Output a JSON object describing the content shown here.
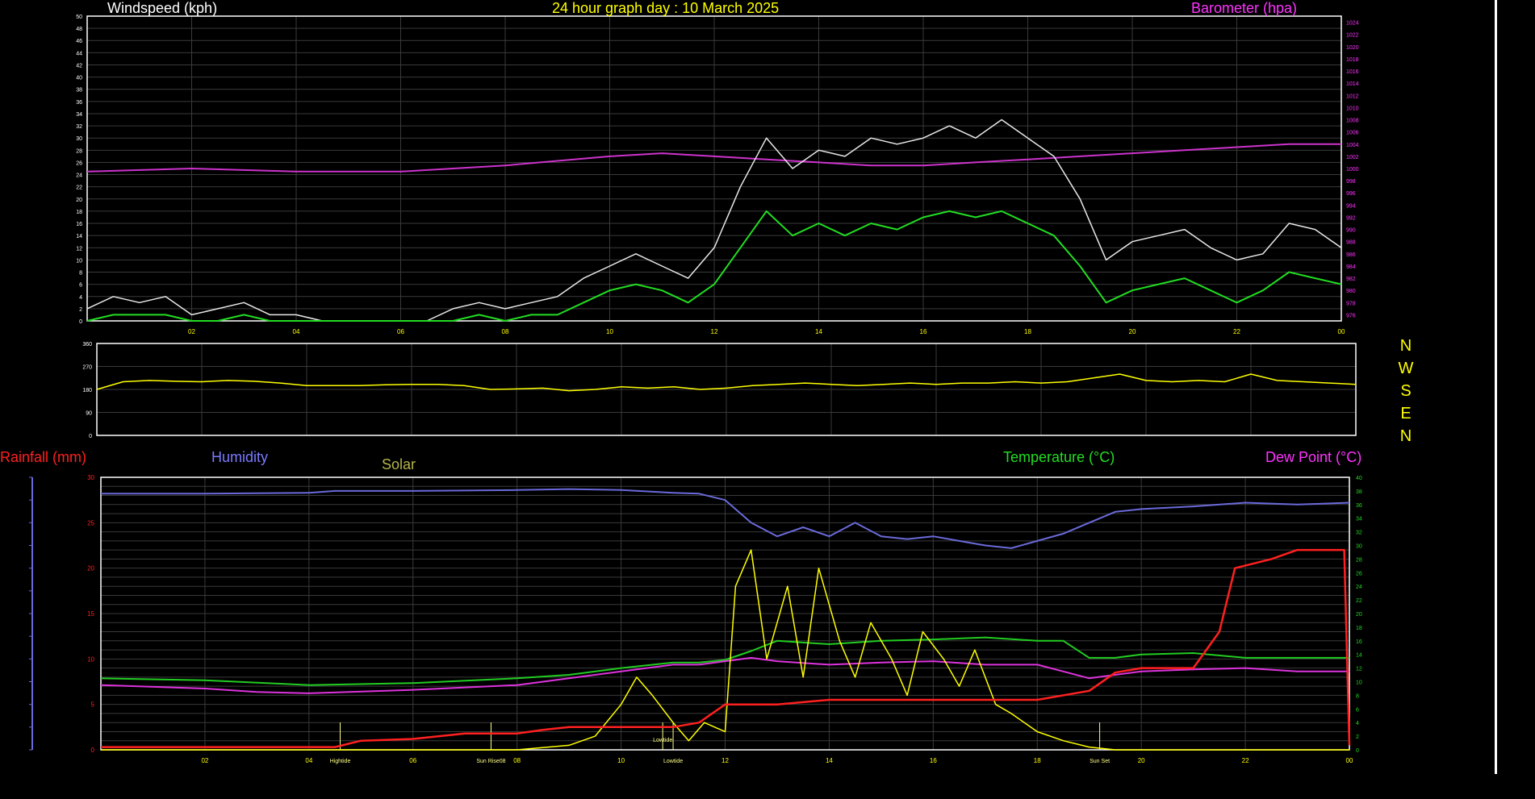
{
  "colors": {
    "background": "#000000",
    "grid": "#3a3a3a",
    "axis": "#ffffff",
    "windspeed": "#e8e8e8",
    "wind_avg": "#22dd22",
    "barometer": "#cc33cc",
    "direction": "#ffff00",
    "rainfall": "#ff2020",
    "humidity": "#6a6adb",
    "solar": "#ffff00",
    "temperature": "#22cc22",
    "dewpoint": "#dd33dd"
  },
  "header": {
    "windspeed_title": "Windspeed (kph)",
    "graph_title": "24 hour graph day : 10 March 2025",
    "barometer_title": "Barometer (hpa)"
  },
  "lower_header": {
    "rainfall": "Rainfall (mm)",
    "humidity": "Humidity",
    "solar": "Solar",
    "temperature": "Temperature (°C)",
    "dewpoint": "Dew Point (°C)"
  },
  "compass": [
    "N",
    "W",
    "S",
    "E",
    "N"
  ],
  "chart_data": [
    {
      "type": "line",
      "title": "24 hour graph day : 10 March 2025",
      "xlabel": "",
      "x_ticks": [
        "02",
        "04",
        "06",
        "08",
        "10",
        "12",
        "14",
        "16",
        "18",
        "20",
        "22",
        "00"
      ],
      "xlim": [
        0,
        24
      ],
      "ylabel": "Windspeed (kph)",
      "ylim": [
        0,
        50
      ],
      "y_ticks": [
        0,
        2,
        4,
        6,
        8,
        10,
        12,
        14,
        16,
        18,
        20,
        22,
        24,
        26,
        28,
        30,
        32,
        34,
        36,
        38,
        40,
        42,
        44,
        46,
        48,
        50
      ],
      "y2label": "Barometer (hpa)",
      "y2lim": [
        975,
        1025
      ],
      "y2_ticks": [
        976,
        978,
        980,
        982,
        984,
        986,
        988,
        990,
        992,
        994,
        996,
        998,
        1000,
        1002,
        1004,
        1006,
        1008,
        1010,
        1012,
        1014,
        1016,
        1018,
        1020,
        1022,
        1024
      ],
      "grid": true,
      "series": [
        {
          "name": "Windspeed (kph)",
          "axis": "y",
          "x": [
            0.0,
            0.5,
            1.0,
            1.5,
            2.0,
            2.5,
            3.0,
            3.5,
            4.0,
            4.5,
            5.0,
            5.5,
            6.0,
            6.5,
            7.0,
            7.5,
            8.0,
            8.5,
            9.0,
            9.5,
            10.0,
            10.5,
            11.0,
            11.5,
            12.0,
            12.5,
            13.0,
            13.5,
            14.0,
            14.5,
            15.0,
            15.5,
            16.0,
            16.5,
            17.0,
            17.5,
            18.0,
            18.5,
            19.0,
            19.5,
            20.0,
            20.5,
            21.0,
            21.5,
            22.0,
            22.5,
            23.0,
            23.5,
            24.0
          ],
          "values": [
            2,
            4,
            3,
            4,
            1,
            2,
            3,
            1,
            1,
            0,
            0,
            0,
            0,
            0,
            2,
            3,
            2,
            3,
            4,
            7,
            9,
            11,
            9,
            7,
            12,
            22,
            30,
            25,
            28,
            27,
            30,
            29,
            30,
            32,
            30,
            33,
            30,
            27,
            20,
            10,
            13,
            14,
            15,
            12,
            10,
            11,
            16,
            15,
            12
          ]
        },
        {
          "name": "Wind average (kph)",
          "axis": "y",
          "x": [
            0.0,
            0.5,
            1.0,
            1.5,
            2.0,
            2.5,
            3.0,
            3.5,
            4.0,
            4.5,
            5.0,
            5.5,
            6.0,
            6.5,
            7.0,
            7.5,
            8.0,
            8.5,
            9.0,
            9.5,
            10.0,
            10.5,
            11.0,
            11.5,
            12.0,
            12.5,
            13.0,
            13.5,
            14.0,
            14.5,
            15.0,
            15.5,
            16.0,
            16.5,
            17.0,
            17.5,
            18.0,
            18.5,
            19.0,
            19.5,
            20.0,
            20.5,
            21.0,
            21.5,
            22.0,
            22.5,
            23.0,
            23.5,
            24.0
          ],
          "values": [
            0,
            1,
            1,
            1,
            0,
            0,
            1,
            0,
            0,
            0,
            0,
            0,
            0,
            0,
            0,
            1,
            0,
            1,
            1,
            3,
            5,
            6,
            5,
            3,
            6,
            12,
            18,
            14,
            16,
            14,
            16,
            15,
            17,
            18,
            17,
            18,
            16,
            14,
            9,
            3,
            5,
            6,
            7,
            5,
            3,
            5,
            8,
            7,
            6
          ]
        },
        {
          "name": "Barometer (hpa)",
          "axis": "y2",
          "x": [
            0,
            2,
            4,
            6,
            8,
            10,
            11,
            12,
            13,
            14,
            15,
            16,
            17,
            18,
            19,
            20,
            21,
            22,
            23,
            24
          ],
          "values": [
            999.5,
            1000.0,
            999.5,
            999.5,
            1000.5,
            1002.0,
            1002.5,
            1002.0,
            1001.5,
            1001.0,
            1000.5,
            1000.5,
            1001.0,
            1001.5,
            1002.0,
            1002.5,
            1003.0,
            1003.5,
            1004.0,
            1004.0
          ]
        }
      ]
    },
    {
      "type": "line",
      "xlabel": "",
      "xlim": [
        0,
        24
      ],
      "ylabel": "",
      "ylim": [
        0,
        360
      ],
      "y_ticks": [
        0,
        90,
        180,
        270,
        360
      ],
      "grid": true,
      "series": [
        {
          "name": "Wind direction",
          "x": [
            0.0,
            0.5,
            1.0,
            1.5,
            2.0,
            2.5,
            3.0,
            3.5,
            4.0,
            4.5,
            5.0,
            5.5,
            6.0,
            6.5,
            7.0,
            7.5,
            8.0,
            8.5,
            9.0,
            9.5,
            10.0,
            10.5,
            11.0,
            11.5,
            12.0,
            12.5,
            13.0,
            13.5,
            14.0,
            14.5,
            15.0,
            15.5,
            16.0,
            16.5,
            17.0,
            17.5,
            18.0,
            18.5,
            19.0,
            19.5,
            20.0,
            20.5,
            21.0,
            21.5,
            22.0,
            22.5,
            23.0,
            23.5,
            24.0
          ],
          "values": [
            180,
            210,
            215,
            212,
            210,
            215,
            212,
            205,
            195,
            195,
            195,
            198,
            200,
            200,
            195,
            180,
            182,
            185,
            175,
            180,
            190,
            185,
            190,
            180,
            185,
            195,
            200,
            205,
            200,
            195,
            200,
            205,
            200,
            205,
            205,
            210,
            205,
            210,
            225,
            240,
            215,
            210,
            215,
            210,
            240,
            215,
            210,
            205,
            200
          ]
        }
      ]
    },
    {
      "type": "line",
      "xlabel": "",
      "x_ticks": [
        "02",
        "04",
        "06",
        "08",
        "10",
        "12",
        "14",
        "16",
        "18",
        "20",
        "22",
        "00"
      ],
      "xlim": [
        0,
        24
      ],
      "ylabel": "Rainfall (mm)",
      "ylim": [
        0,
        30
      ],
      "y_ticks": [
        0,
        5,
        10,
        15,
        20,
        25,
        30
      ],
      "y2label": "Temperature (°C)",
      "y2lim": [
        0,
        40
      ],
      "y2_ticks": [
        0,
        2,
        4,
        6,
        8,
        10,
        12,
        14,
        16,
        18,
        20,
        22,
        24,
        26,
        28,
        30,
        32,
        34,
        36,
        38,
        40
      ],
      "grid": true,
      "annotations": [
        "Hightide",
        "Sun Rise08",
        "Lowtide",
        "Lowtide",
        "Sun Set"
      ],
      "series": [
        {
          "name": "Rainfall (mm)",
          "axis": "y",
          "x": [
            0,
            4.5,
            5.0,
            6.0,
            7.0,
            8.0,
            8.5,
            9.0,
            10.0,
            11.0,
            11.5,
            12.0,
            13.0,
            14.0,
            16.0,
            18.0,
            19.0,
            19.5,
            20.0,
            21.0,
            21.5,
            21.8,
            22.5,
            23.0,
            23.9,
            24.0
          ],
          "values": [
            0.3,
            0.3,
            1.0,
            1.2,
            1.8,
            1.8,
            2.2,
            2.5,
            2.5,
            2.5,
            3.0,
            5.0,
            5.0,
            5.5,
            5.5,
            5.5,
            6.5,
            8.5,
            9.0,
            9.0,
            13.0,
            20.0,
            21.0,
            22.0,
            22.0,
            0.5
          ]
        },
        {
          "name": "Humidity",
          "axis": "y",
          "x": [
            0,
            2,
            4,
            4.5,
            6,
            8,
            9,
            10,
            11,
            11.5,
            12,
            12.5,
            13,
            13.5,
            14,
            14.5,
            15,
            15.5,
            16,
            16.5,
            17,
            17.5,
            18,
            18.5,
            19,
            19.5,
            20,
            21,
            22,
            23,
            24
          ],
          "values": [
            28.2,
            28.2,
            28.3,
            28.5,
            28.5,
            28.6,
            28.7,
            28.6,
            28.3,
            28.2,
            27.5,
            25.0,
            23.5,
            24.5,
            23.5,
            25.0,
            23.5,
            23.2,
            23.5,
            23.0,
            22.5,
            22.2,
            23.0,
            23.8,
            25.0,
            26.2,
            26.5,
            26.8,
            27.2,
            27.0,
            27.2
          ]
        },
        {
          "name": "Solar",
          "axis": "y",
          "x": [
            0,
            8.0,
            9.0,
            9.5,
            10.0,
            10.3,
            10.6,
            11.0,
            11.3,
            11.6,
            12.0,
            12.2,
            12.5,
            12.8,
            13.2,
            13.5,
            13.8,
            14.2,
            14.5,
            14.8,
            15.2,
            15.5,
            15.8,
            16.2,
            16.5,
            16.8,
            17.2,
            17.5,
            18.0,
            18.5,
            19.0,
            19.5,
            24.0
          ],
          "values": [
            0,
            0,
            0.5,
            1.5,
            5,
            8,
            6,
            3,
            1,
            3,
            2,
            18,
            22,
            10,
            18,
            8,
            20,
            12,
            8,
            14,
            10,
            6,
            13,
            10,
            7,
            11,
            5,
            4,
            2,
            1,
            0.3,
            0,
            0
          ]
        },
        {
          "name": "Temperature (°C)",
          "axis": "y2",
          "x": [
            0,
            2,
            4,
            6,
            8,
            9,
            10,
            11,
            11.5,
            12,
            12.5,
            13,
            14,
            15,
            16,
            17,
            18,
            18.5,
            19,
            19.5,
            20,
            21,
            22,
            23,
            24
          ],
          "values": [
            10.5,
            10.2,
            9.5,
            9.8,
            10.5,
            11,
            12,
            12.8,
            12.8,
            13.2,
            14.5,
            16,
            15.5,
            16,
            16.2,
            16.5,
            16.0,
            16.0,
            13.5,
            13.5,
            14.0,
            14.2,
            13.5,
            13.5,
            13.5
          ]
        },
        {
          "name": "Dew Point (°C)",
          "axis": "y2",
          "x": [
            0,
            2,
            3,
            4,
            6,
            8,
            9,
            10,
            11,
            11.5,
            12,
            12.5,
            13,
            14,
            15,
            16,
            17,
            18,
            18.5,
            19,
            19.5,
            20,
            21,
            22,
            23,
            24
          ],
          "values": [
            9.5,
            9.0,
            8.5,
            8.3,
            8.8,
            9.5,
            10.5,
            11.5,
            12.5,
            12.5,
            13.0,
            13.5,
            13.0,
            12.5,
            12.8,
            13.0,
            12.5,
            12.5,
            11.5,
            10.5,
            11.0,
            11.5,
            11.8,
            12.0,
            11.5,
            11.5
          ]
        }
      ]
    }
  ]
}
